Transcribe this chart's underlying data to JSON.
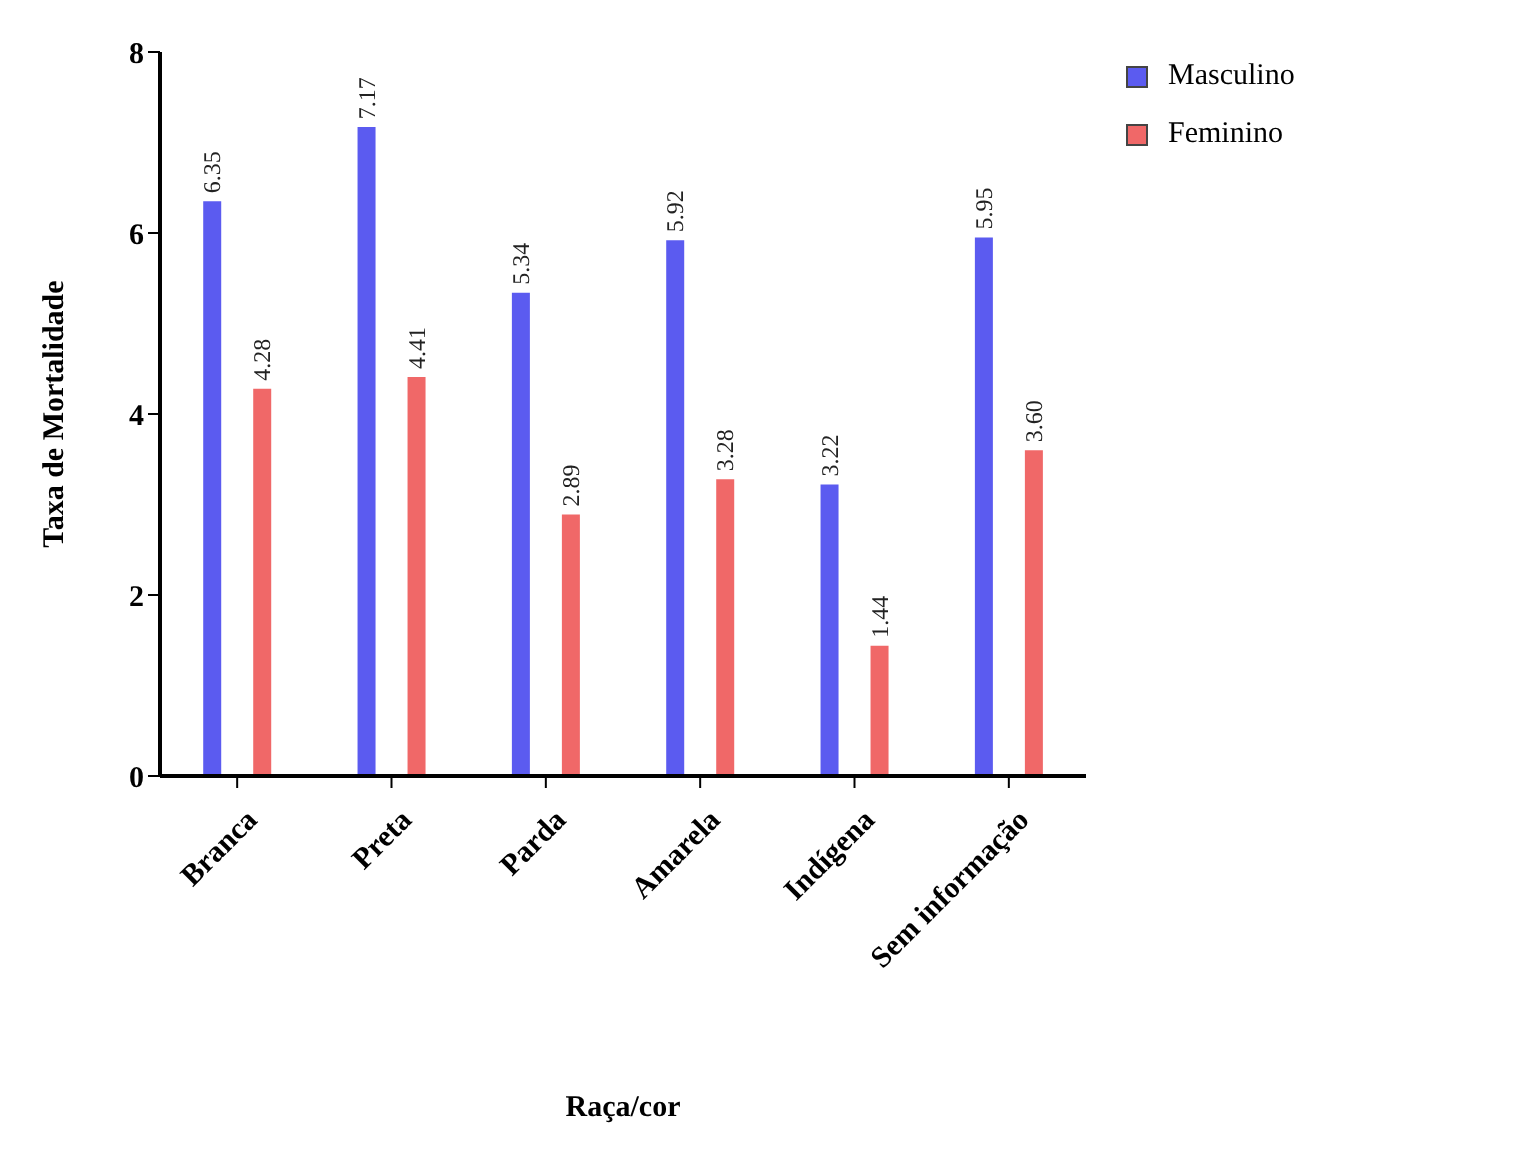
{
  "chart_data": {
    "type": "bar",
    "xlabel": "Raça/cor",
    "ylabel": "Taxa de Mortalidade",
    "categories": [
      "Branca",
      "Preta",
      "Parda",
      "Amarela",
      "Indígena",
      "Sem informação"
    ],
    "series": [
      {
        "name": "Masculino",
        "color": "#5b5bf0",
        "values": [
          6.35,
          7.17,
          5.34,
          5.92,
          3.22,
          5.95
        ],
        "value_labels": [
          "6.35",
          "7.17",
          "5.34",
          "5.92",
          "3.22",
          "5.95"
        ]
      },
      {
        "name": "Feminino",
        "color": "#f06868",
        "values": [
          4.28,
          4.41,
          2.89,
          3.28,
          1.44,
          3.6
        ],
        "value_labels": [
          "4.28",
          "4.41",
          "2.89",
          "3.28",
          "1.44",
          "3.60"
        ]
      }
    ],
    "ylim": [
      0,
      8
    ],
    "yticks": [
      0,
      2,
      4,
      6,
      8
    ],
    "grid": false,
    "legend": "top right"
  }
}
